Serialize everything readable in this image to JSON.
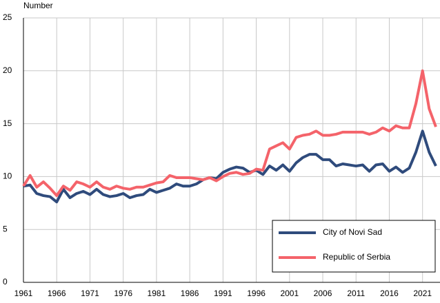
{
  "chart_data": {
    "type": "line",
    "y_label": "Number",
    "x": [
      1961,
      1962,
      1963,
      1964,
      1965,
      1966,
      1967,
      1968,
      1969,
      1970,
      1971,
      1972,
      1973,
      1974,
      1975,
      1976,
      1977,
      1978,
      1979,
      1980,
      1981,
      1982,
      1983,
      1984,
      1985,
      1986,
      1987,
      1988,
      1989,
      1990,
      1991,
      1992,
      1993,
      1994,
      1995,
      1996,
      1997,
      1998,
      1999,
      2000,
      2001,
      2002,
      2003,
      2004,
      2005,
      2006,
      2007,
      2008,
      2009,
      2010,
      2011,
      2012,
      2013,
      2014,
      2015,
      2016,
      2017,
      2018,
      2019,
      2020,
      2021,
      2022,
      2023
    ],
    "series": [
      {
        "name": "City of Novi Sad",
        "color": "#2f4b7c",
        "values": [
          9.1,
          9.2,
          8.4,
          8.2,
          8.1,
          7.6,
          8.8,
          8.0,
          8.4,
          8.6,
          8.3,
          8.8,
          8.3,
          8.1,
          8.2,
          8.4,
          8.0,
          8.2,
          8.3,
          8.8,
          8.5,
          8.7,
          8.9,
          9.3,
          9.1,
          9.1,
          9.3,
          9.7,
          9.9,
          9.8,
          10.4,
          10.7,
          10.9,
          10.8,
          10.4,
          10.6,
          10.2,
          11.0,
          10.6,
          11.1,
          10.5,
          11.3,
          11.8,
          12.1,
          12.1,
          11.6,
          11.6,
          11.0,
          11.2,
          11.1,
          11.0,
          11.1,
          10.5,
          11.1,
          11.2,
          10.5,
          10.9,
          10.4,
          10.8,
          12.3,
          14.3,
          12.3,
          11.0
        ]
      },
      {
        "name": "Republic of Serbia",
        "color": "#f4636a",
        "values": [
          9.1,
          10.1,
          9.0,
          9.5,
          8.9,
          8.2,
          9.1,
          8.7,
          9.5,
          9.3,
          9.0,
          9.5,
          9.0,
          8.8,
          9.1,
          8.9,
          8.8,
          9.0,
          9.0,
          9.2,
          9.4,
          9.5,
          10.1,
          9.9,
          9.9,
          9.9,
          9.8,
          9.7,
          9.9,
          9.6,
          10.0,
          10.3,
          10.4,
          10.2,
          10.3,
          10.7,
          10.6,
          12.6,
          12.9,
          13.2,
          12.6,
          13.7,
          13.9,
          14.0,
          14.3,
          13.9,
          13.9,
          14.0,
          14.2,
          14.2,
          14.2,
          14.2,
          14.0,
          14.2,
          14.6,
          14.3,
          14.8,
          14.6,
          14.6,
          16.9,
          20.0,
          16.4,
          14.7
        ]
      }
    ],
    "xlim": [
      1961,
      2023
    ],
    "xticks": [
      1961,
      1966,
      1971,
      1976,
      1981,
      1986,
      1991,
      1996,
      2001,
      2006,
      2011,
      2016,
      2021
    ],
    "ylim": [
      0,
      25
    ],
    "yticks": [
      0,
      5,
      10,
      15,
      20,
      25
    ],
    "grid": true,
    "legend": "lower right"
  }
}
